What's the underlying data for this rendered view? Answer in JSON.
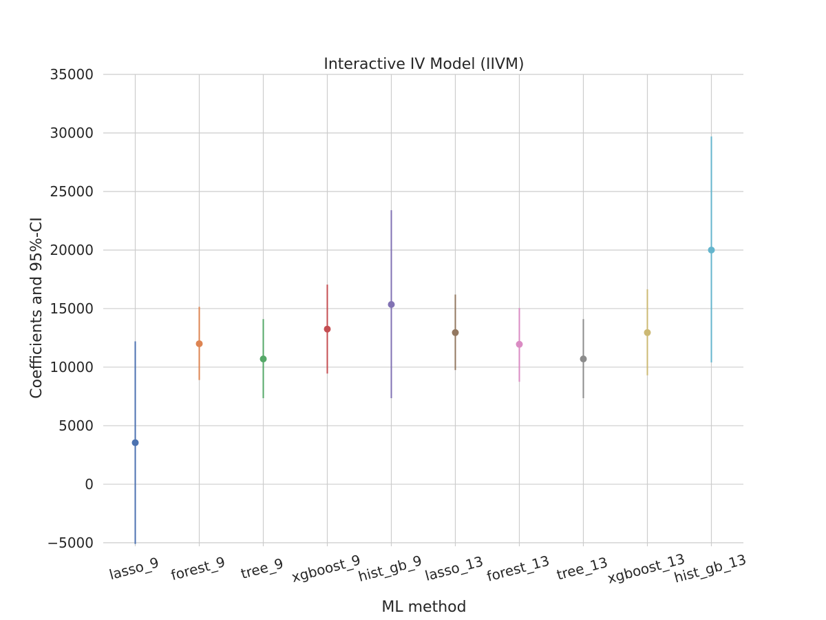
{
  "chart_data": {
    "type": "scatter",
    "title": "Interactive IV Model (IIVM)",
    "xlabel": "ML method",
    "ylabel": "Coefficients and 95%-CI",
    "categories": [
      "lasso_9",
      "forest_9",
      "tree_9",
      "xgboost_9",
      "hist_gb_9",
      "lasso_13",
      "forest_13",
      "tree_13",
      "xgboost_13",
      "hist_gb_13"
    ],
    "values": [
      3550,
      12000,
      10700,
      13250,
      15350,
      12950,
      11950,
      10700,
      12950,
      20000
    ],
    "ci_lower": [
      -5100,
      8900,
      7350,
      9450,
      7350,
      9750,
      8750,
      7350,
      9300,
      10400
    ],
    "ci_upper": [
      12200,
      15150,
      14100,
      17050,
      23400,
      16200,
      15050,
      14100,
      16650,
      29700
    ],
    "colors": [
      "#4c72b0",
      "#dd8452",
      "#55a868",
      "#c44e52",
      "#8172b3",
      "#937860",
      "#da8bc3",
      "#8c8c8c",
      "#ccb974",
      "#64b5cd"
    ],
    "ylim": [
      -5300,
      35000
    ],
    "yticks": [
      -5000,
      0,
      5000,
      10000,
      15000,
      20000,
      25000,
      30000,
      35000
    ],
    "ytick_labels": [
      "−5000",
      "0",
      "5000",
      "10000",
      "15000",
      "20000",
      "25000",
      "30000",
      "35000"
    ],
    "grid": true,
    "xtick_rotation": -15
  }
}
